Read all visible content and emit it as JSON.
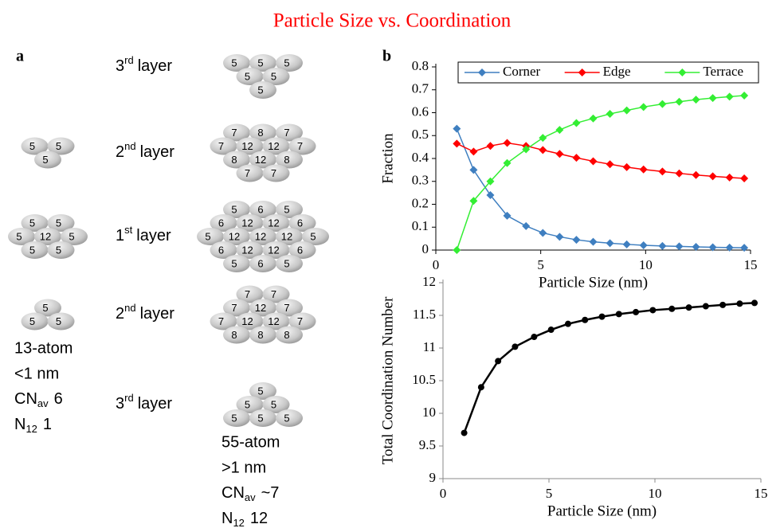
{
  "title": "Particle Size vs. Coordination",
  "panel_a": {
    "label": "a",
    "layer_labels": [
      {
        "ordinal": "3",
        "suffix": "rd",
        "word": "layer"
      },
      {
        "ordinal": "2",
        "suffix": "nd",
        "word": "layer"
      },
      {
        "ordinal": "1",
        "suffix": "st",
        "word": "layer"
      },
      {
        "ordinal": "2",
        "suffix": "nd",
        "word": "layer"
      },
      {
        "ordinal": "3",
        "suffix": "rd",
        "word": "layer"
      }
    ],
    "small_cluster": {
      "layers": [
        [
          [
            5,
            5
          ],
          [
            5
          ]
        ],
        [
          [
            5,
            5
          ],
          [
            5,
            12,
            5
          ],
          [
            5,
            5
          ]
        ],
        [
          [
            5
          ],
          [
            5,
            5
          ]
        ]
      ],
      "caption": {
        "atoms": "13-atom",
        "size": "<1 nm",
        "cn": {
          "symbol": "CN",
          "sub": "av",
          "value": 6
        },
        "n12": {
          "symbol": "N",
          "sub": "12",
          "value": 1
        }
      }
    },
    "large_cluster": {
      "layers": [
        [
          [
            5,
            5,
            5
          ],
          [
            5,
            5
          ],
          [
            5
          ]
        ],
        [
          [
            7,
            8,
            7
          ],
          [
            7,
            12,
            12,
            7
          ],
          [
            8,
            12,
            8
          ],
          [
            7,
            7
          ]
        ],
        [
          [
            5,
            6,
            5
          ],
          [
            6,
            12,
            12,
            6
          ],
          [
            5,
            12,
            12,
            12,
            5
          ],
          [
            6,
            12,
            12,
            6
          ],
          [
            5,
            6,
            5
          ]
        ],
        [
          [
            7,
            7
          ],
          [
            7,
            12,
            7
          ],
          [
            7,
            12,
            12,
            7
          ],
          [
            8,
            8,
            8
          ]
        ],
        [
          [
            5
          ],
          [
            5,
            5
          ],
          [
            5,
            5,
            5
          ]
        ]
      ],
      "caption": {
        "atoms": "55-atom",
        "size": ">1 nm",
        "cn": {
          "symbol": "CN",
          "sub": "av",
          "value": "~7"
        },
        "n12": {
          "symbol": "N",
          "sub": "12",
          "value": 12
        }
      }
    }
  },
  "panel_b_label": "b",
  "chart_data": [
    {
      "type": "line",
      "marker": "diamond",
      "legend": "top",
      "x": [
        1.0,
        1.8,
        2.6,
        3.4,
        4.3,
        5.1,
        5.9,
        6.7,
        7.5,
        8.3,
        9.1,
        9.9,
        10.8,
        11.6,
        12.4,
        13.2,
        14.0,
        14.7
      ],
      "series": [
        {
          "name": "Corner",
          "color": "#3f7fc0",
          "values": [
            0.53,
            0.35,
            0.24,
            0.15,
            0.105,
            0.075,
            0.058,
            0.045,
            0.036,
            0.03,
            0.025,
            0.021,
            0.018,
            0.016,
            0.014,
            0.012,
            0.011,
            0.01
          ]
        },
        {
          "name": "Edge",
          "color": "#ff0000",
          "values": [
            0.465,
            0.43,
            0.455,
            0.468,
            0.455,
            0.437,
            0.42,
            0.403,
            0.388,
            0.375,
            0.362,
            0.352,
            0.343,
            0.335,
            0.328,
            0.322,
            0.317,
            0.313
          ]
        },
        {
          "name": "Terrace",
          "color": "#33ee33",
          "values": [
            0,
            0.215,
            0.3,
            0.38,
            0.44,
            0.49,
            0.525,
            0.555,
            0.575,
            0.595,
            0.61,
            0.625,
            0.638,
            0.648,
            0.657,
            0.664,
            0.67,
            0.675
          ]
        }
      ],
      "xlabel": "Particle Size (nm)",
      "ylabel": "Fraction",
      "xlim": [
        0,
        15
      ],
      "xticks": [
        0,
        5,
        10,
        15
      ],
      "ylim": [
        0,
        0.8
      ],
      "yticks": [
        0,
        0.1,
        0.2,
        0.3,
        0.4,
        0.5,
        0.6,
        0.7,
        0.8
      ]
    },
    {
      "type": "line",
      "marker": "circle",
      "color": "#000000",
      "x": [
        1.0,
        1.8,
        2.6,
        3.4,
        4.3,
        5.1,
        5.9,
        6.7,
        7.5,
        8.3,
        9.1,
        9.9,
        10.8,
        11.6,
        12.4,
        13.2,
        14.0,
        14.7
      ],
      "values": [
        9.7,
        10.4,
        10.8,
        11.02,
        11.17,
        11.28,
        11.37,
        11.43,
        11.48,
        11.52,
        11.55,
        11.58,
        11.6,
        11.62,
        11.64,
        11.66,
        11.68,
        11.69
      ],
      "xlabel": "Particle Size (nm)",
      "ylabel": "Total Coordination Number",
      "xlim": [
        0,
        15
      ],
      "xticks": [
        0,
        5,
        10,
        15
      ],
      "ylim": [
        9,
        12
      ],
      "yticks": [
        9,
        9.5,
        10,
        10.5,
        11,
        11.5,
        12
      ]
    }
  ]
}
